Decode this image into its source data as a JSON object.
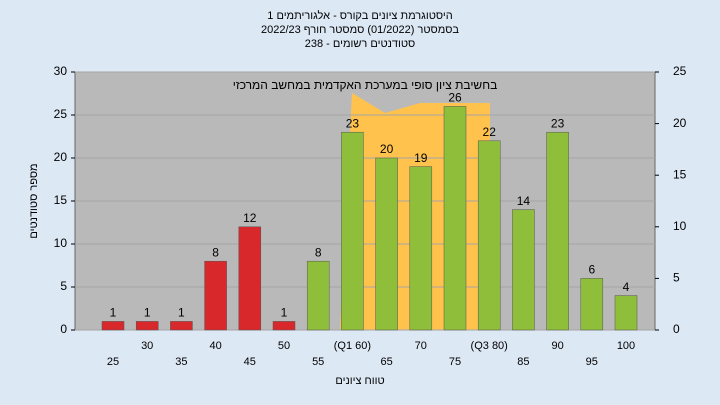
{
  "chart_data": {
    "type": "bar",
    "title": "היסטוגרמת ציונים בקורס - אלגוריתמים 1",
    "subtitle": "בסמסטר  (01/2022)  סמסטר חורף 2022/23",
    "subtitle2": "סטודנטים רשומים - 238",
    "annotation": "בחשיבת ציון סופי במערכת האקדמית במחשב המרכזי",
    "x_label": "טווח ציונים",
    "y_label": "מספר סטודנטים",
    "categories": [
      "25",
      "30",
      "35",
      "40",
      "45",
      "50",
      "55",
      "(Q1 60)",
      "65",
      "70",
      "75",
      "(Q3 80)",
      "85",
      "90",
      "95",
      "100"
    ],
    "values": [
      1,
      1,
      1,
      8,
      12,
      1,
      8,
      23,
      20,
      19,
      26,
      22,
      14,
      23,
      6,
      4
    ],
    "colors": [
      "#d9282c",
      "#d9282c",
      "#d9282c",
      "#d9282c",
      "#d9282c",
      "#d9282c",
      "#8fbf3a",
      "#8fbf3a",
      "#8fbf3a",
      "#8fbf3a",
      "#8fbf3a",
      "#8fbf3a",
      "#8fbf3a",
      "#8fbf3a",
      "#8fbf3a",
      "#8fbf3a"
    ],
    "ylim": [
      0,
      30
    ],
    "yticks": [
      0,
      5,
      10,
      15,
      20,
      25,
      30
    ],
    "y2lim": [
      0,
      25
    ],
    "y2ticks": [
      0,
      5,
      10,
      15,
      20,
      25
    ],
    "grid": true
  }
}
